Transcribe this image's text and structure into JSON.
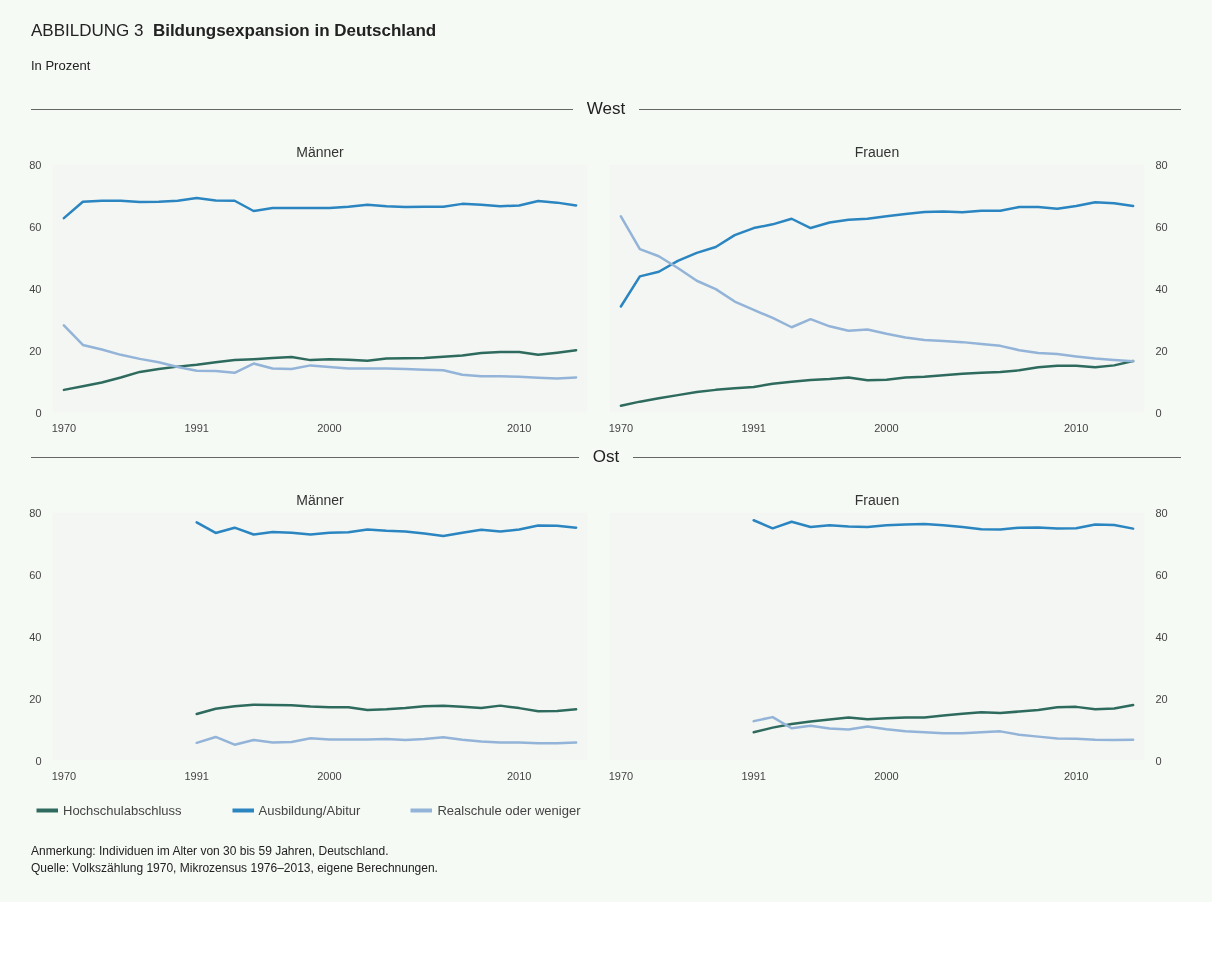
{
  "chart_data": [
    {
      "type": "line",
      "title": "Männer",
      "subtitle": "West",
      "ylabel": "In Prozent",
      "annotations": [
        "ABBILDUNG 3",
        "Bildungsexpansion in Deutschland",
        "Anmerkung: Individuen im Alter von 30 bis 59 Jahren, Deutschland.",
        "Quelle: Volkszählung 1970, Mikrozensus 1976–2013, eigene Berechnungen."
      ],
      "legend": "bottom",
      "categories": [
        "1970",
        null,
        null,
        null,
        null,
        null,
        null,
        "1991",
        null,
        null,
        null,
        null,
        null,
        null,
        "2000",
        null,
        null,
        null,
        null,
        null,
        null,
        null,
        null,
        null,
        "2010",
        null,
        null,
        null
      ],
      "ylim": [
        0,
        80
      ],
      "yticks": [
        0,
        20,
        40,
        60,
        80
      ],
      "series": [
        {
          "name": "Hochschulabschluss",
          "color": "#2e6b5e",
          "values": [
            7.3,
            8.5,
            9.7,
            11.3,
            13.1,
            14,
            14.8,
            15.4,
            16.2,
            16.9,
            17.2,
            17.6,
            17.9,
            16.9,
            17.2,
            17,
            16.7,
            17.4,
            17.5,
            17.6,
            18,
            18.4,
            19.2,
            19.5,
            19.5,
            18.6,
            19.3,
            20.1
          ]
        },
        {
          "name": "Ausbildung/Abitur",
          "color": "#2a85c0",
          "values": [
            62.7,
            68,
            68.3,
            68.3,
            67.9,
            68,
            68.3,
            69.2,
            68.4,
            68.3,
            65,
            66,
            66,
            66,
            66,
            66.4,
            67,
            66.5,
            66.3,
            66.4,
            66.4,
            67.3,
            67,
            66.5,
            66.8,
            68.2,
            67.7,
            66.8
          ]
        },
        {
          "name": "Realschule oder weniger",
          "color": "#93b4d8",
          "values": [
            28.1,
            21.8,
            20.3,
            18.6,
            17.3,
            16.2,
            14.7,
            13.5,
            13.4,
            12.8,
            15.8,
            14.2,
            14,
            15.2,
            14.7,
            14.2,
            14.2,
            14.2,
            14,
            13.8,
            13.6,
            12.2,
            11.7,
            11.7,
            11.5,
            11.2,
            11,
            11.3
          ]
        }
      ]
    },
    {
      "type": "line",
      "title": "Frauen",
      "categories": [
        "1970",
        null,
        null,
        null,
        null,
        null,
        null,
        "1991",
        null,
        null,
        null,
        null,
        null,
        null,
        "2000",
        null,
        null,
        null,
        null,
        null,
        null,
        null,
        null,
        null,
        "2010",
        null,
        null,
        null
      ],
      "ylim": [
        0,
        80
      ],
      "yticks": [
        0,
        20,
        40,
        60,
        80
      ],
      "series": [
        {
          "color": "#2e6b5e",
          "values": [
            2.2,
            3.5,
            4.6,
            5.6,
            6.6,
            7.3,
            7.8,
            8.2,
            9.3,
            9.9,
            10.5,
            10.8,
            11.3,
            10.4,
            10.6,
            11.3,
            11.5,
            12,
            12.5,
            12.8,
            13.1,
            13.6,
            14.6,
            15.1,
            15.1,
            14.6,
            15.2,
            16.6
          ]
        },
        {
          "color": "#2a85c0",
          "values": [
            34.2,
            43.9,
            45.4,
            48.9,
            51.5,
            53.4,
            57.2,
            59.5,
            60.7,
            62.5,
            59.5,
            61.3,
            62.2,
            62.5,
            63.3,
            64,
            64.7,
            64.8,
            64.6,
            65.1,
            65.1,
            66.3,
            66.3,
            65.7,
            66.6,
            67.8,
            67.5,
            66.6
          ]
        },
        {
          "color": "#93b4d8",
          "values": [
            63.3,
            52.7,
            50.4,
            46.6,
            42.5,
            39.8,
            35.8,
            33.1,
            30.5,
            27.5,
            30.1,
            27.8,
            26.4,
            26.8,
            25.4,
            24.2,
            23.4,
            23.1,
            22.7,
            22.1,
            21.5,
            20.1,
            19.2,
            18.9,
            18.1,
            17.4,
            16.9,
            16.5
          ]
        }
      ]
    },
    {
      "type": "line",
      "title": "Männer",
      "subtitle": "Ost",
      "categories": [
        "1970",
        null,
        null,
        null,
        null,
        null,
        null,
        "1991",
        null,
        null,
        null,
        null,
        null,
        null,
        "2000",
        null,
        null,
        null,
        null,
        null,
        null,
        null,
        null,
        null,
        "2010",
        null,
        null,
        null
      ],
      "ylim": [
        0,
        80
      ],
      "yticks": [
        0,
        20,
        40,
        60,
        80
      ],
      "series": [
        {
          "color": "#2e6b5e",
          "values": [
            null,
            null,
            null,
            null,
            null,
            null,
            null,
            15,
            16.7,
            17.5,
            18,
            17.9,
            17.8,
            17.4,
            17.2,
            17.2,
            16.3,
            16.5,
            16.9,
            17.5,
            17.7,
            17.3,
            16.9,
            17.7,
            16.9,
            15.9,
            16,
            16.5
          ]
        },
        {
          "color": "#2a85c0",
          "values": [
            null,
            null,
            null,
            null,
            null,
            null,
            null,
            76.8,
            73.4,
            75.1,
            72.9,
            73.7,
            73.5,
            72.9,
            73.5,
            73.6,
            74.5,
            74.1,
            73.9,
            73.2,
            72.4,
            73.5,
            74.4,
            73.9,
            74.5,
            75.8,
            75.7,
            75.1
          ]
        },
        {
          "color": "#93b4d8",
          "values": [
            null,
            null,
            null,
            null,
            null,
            null,
            null,
            5.7,
            7.6,
            5.1,
            6.6,
            5.8,
            6,
            7.2,
            6.8,
            6.8,
            6.8,
            6.9,
            6.6,
            6.9,
            7.5,
            6.7,
            6.1,
            5.8,
            5.8,
            5.6,
            5.6,
            5.8
          ]
        }
      ]
    },
    {
      "type": "line",
      "title": "Frauen",
      "categories": [
        "1970",
        null,
        null,
        null,
        null,
        null,
        null,
        "1991",
        null,
        null,
        null,
        null,
        null,
        null,
        "2000",
        null,
        null,
        null,
        null,
        null,
        null,
        null,
        null,
        null,
        "2010",
        null,
        null,
        null
      ],
      "ylim": [
        0,
        80
      ],
      "yticks": [
        0,
        20,
        40,
        60,
        80
      ],
      "series": [
        {
          "color": "#2e6b5e",
          "values": [
            null,
            null,
            null,
            null,
            null,
            null,
            null,
            9.1,
            10.6,
            11.8,
            12.6,
            13.2,
            13.9,
            13.3,
            13.6,
            13.9,
            13.9,
            14.5,
            15.1,
            15.6,
            15.3,
            15.8,
            16.3,
            17.2,
            17.3,
            16.5,
            16.8,
            17.9
          ]
        },
        {
          "color": "#2a85c0",
          "values": [
            null,
            null,
            null,
            null,
            null,
            null,
            null,
            77.5,
            74.9,
            77,
            75.3,
            75.9,
            75.5,
            75.3,
            75.9,
            76.1,
            76.3,
            75.9,
            75.3,
            74.6,
            74.5,
            75.1,
            75.2,
            74.8,
            74.9,
            76.1,
            76,
            74.8
          ]
        },
        {
          "color": "#93b4d8",
          "values": [
            null,
            null,
            null,
            null,
            null,
            null,
            null,
            12.7,
            14,
            10.4,
            11.2,
            10.3,
            10,
            11,
            10.1,
            9.4,
            9.1,
            8.8,
            8.8,
            9.1,
            9.4,
            8.3,
            7.7,
            7.1,
            7,
            6.7,
            6.6,
            6.7
          ]
        }
      ]
    }
  ]
}
